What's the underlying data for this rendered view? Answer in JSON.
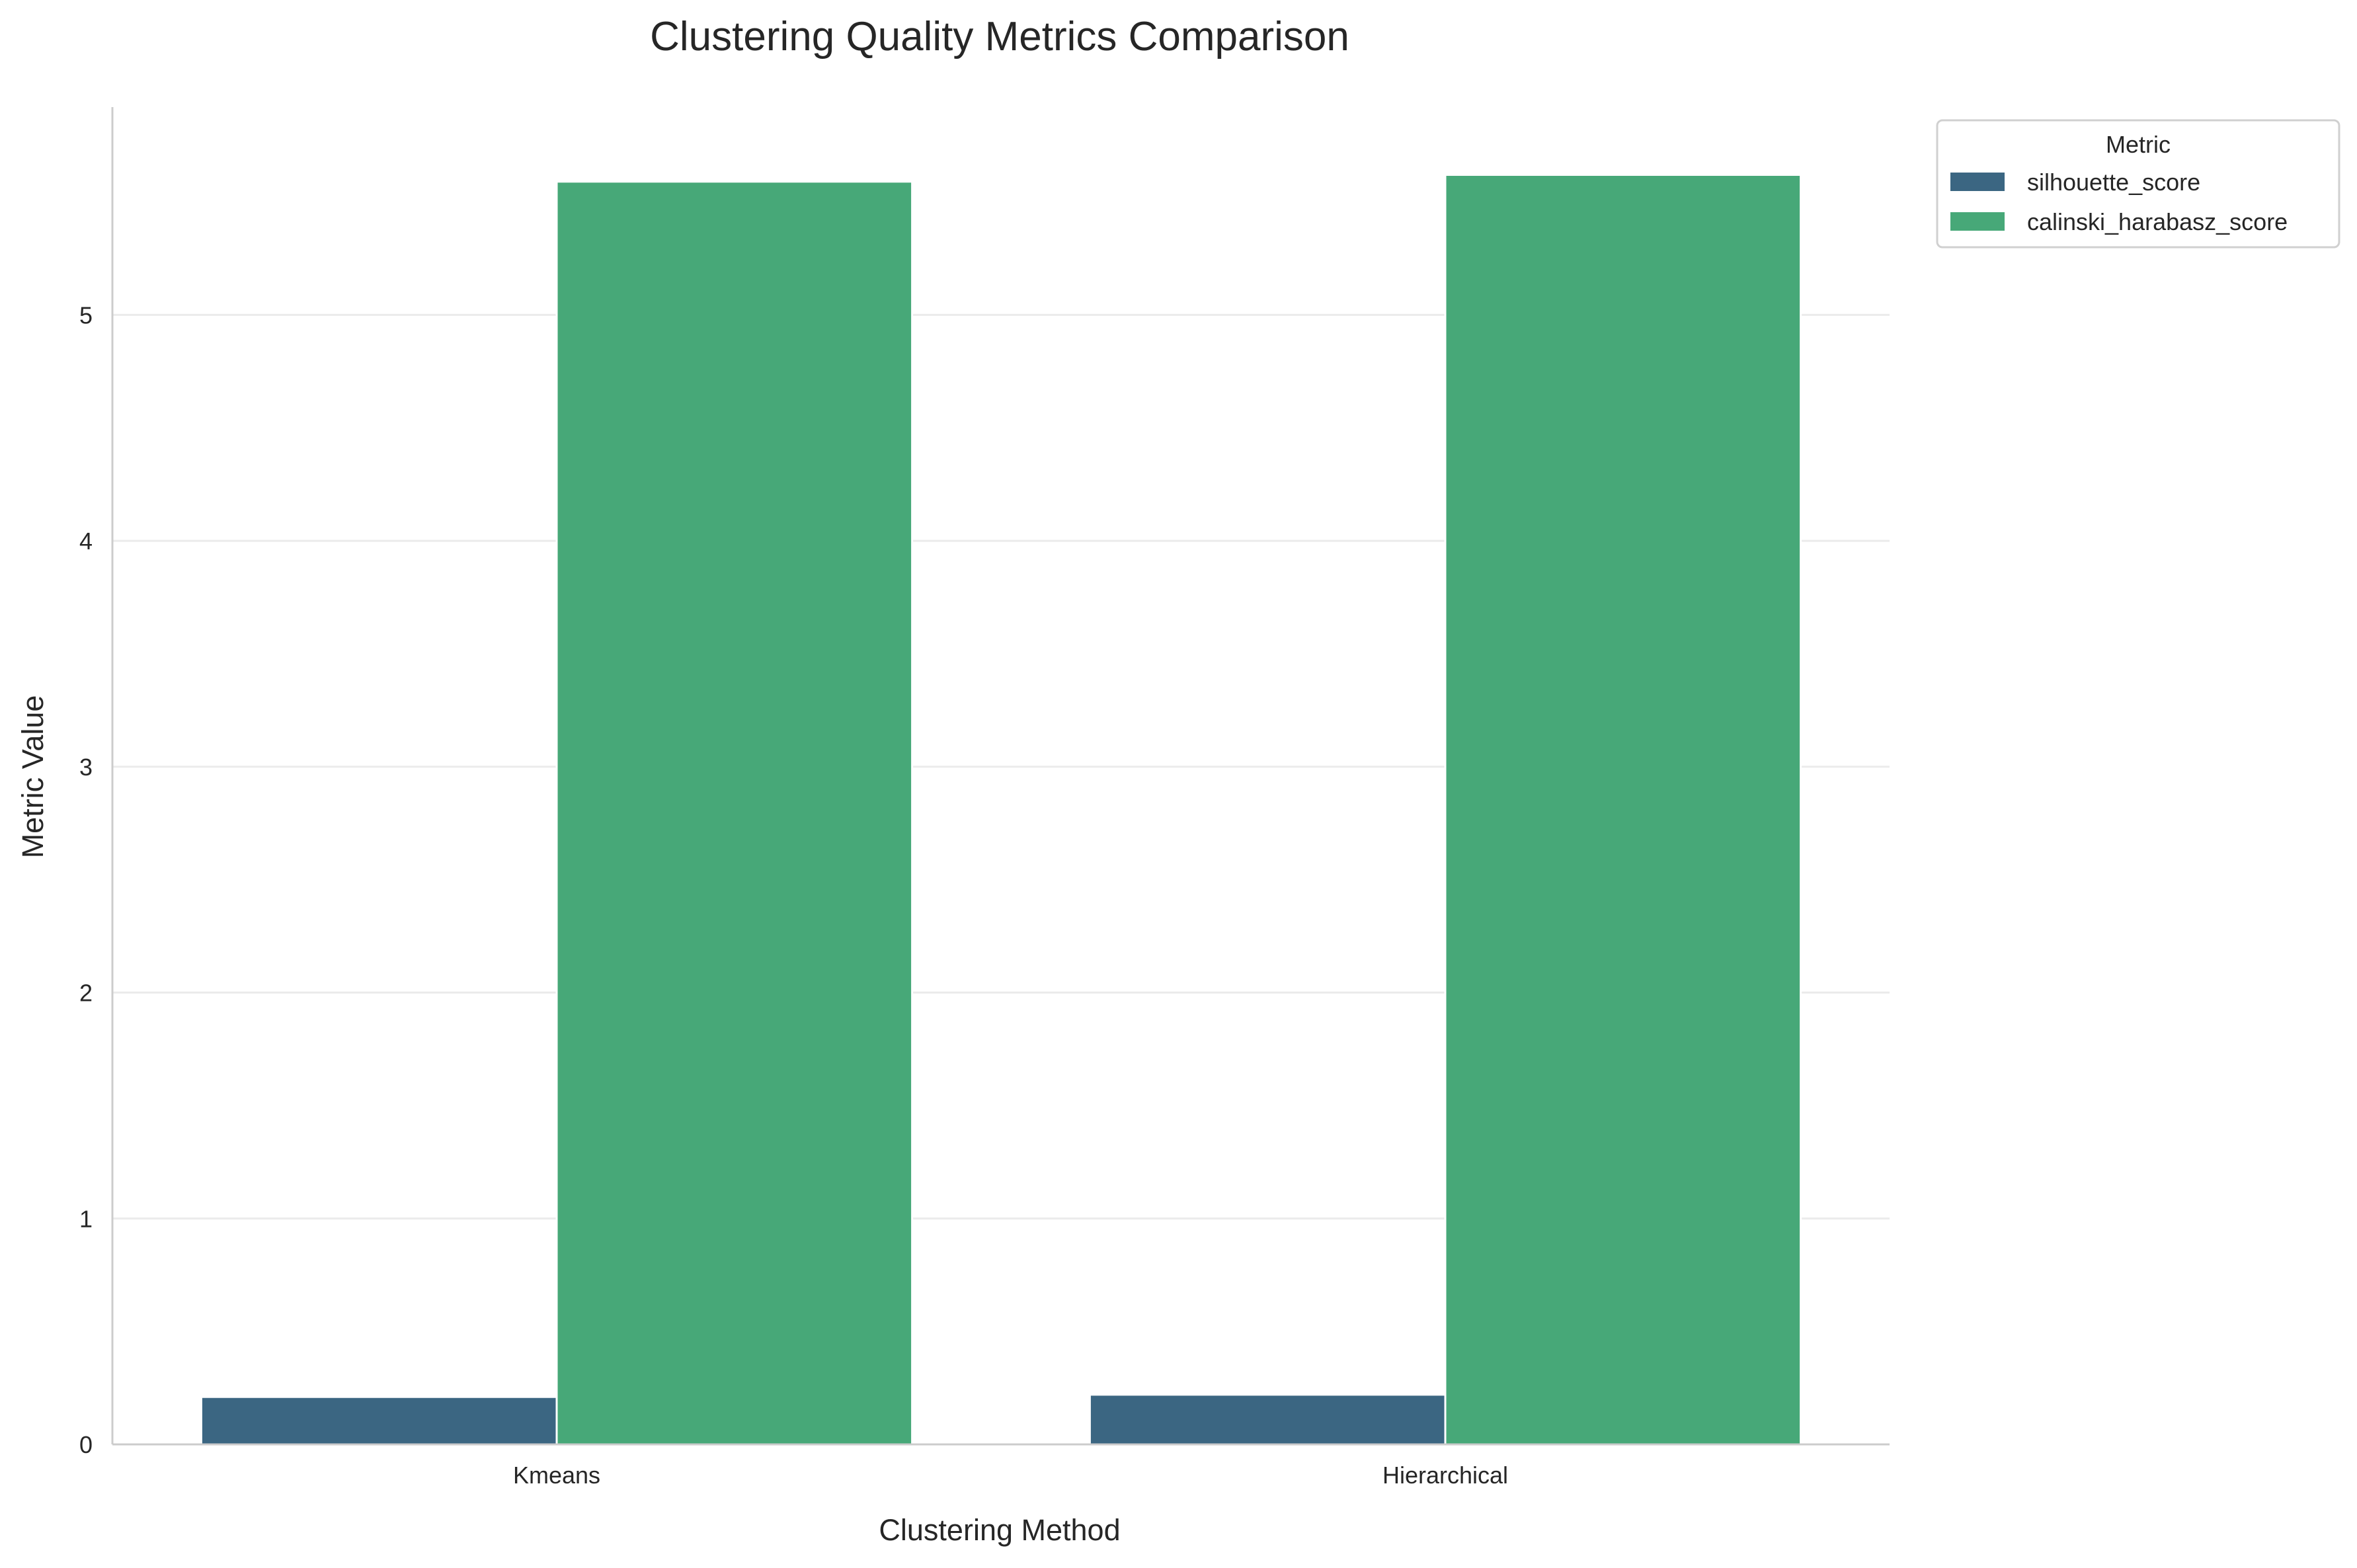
{
  "chart_data": {
    "type": "bar",
    "title": "Clustering Quality Metrics Comparison",
    "xlabel": "Clustering Method",
    "ylabel": "Metric Value",
    "categories": [
      "Kmeans",
      "Hierarchical"
    ],
    "series": [
      {
        "name": "silhouette_score",
        "color": "#3b6682",
        "values": [
          0.21,
          0.22
        ]
      },
      {
        "name": "calinski_harabasz_score",
        "color": "#47a878",
        "values": [
          5.59,
          5.62
        ]
      }
    ],
    "ylim": [
      0,
      5.92
    ],
    "yticks": [
      0,
      1,
      2,
      3,
      4,
      5
    ],
    "ytick_labels": [
      "0",
      "1",
      "2",
      "3",
      "4",
      "5"
    ],
    "grid": "horizontal",
    "legend": {
      "title": "Metric",
      "placement": "outside top-right"
    }
  }
}
